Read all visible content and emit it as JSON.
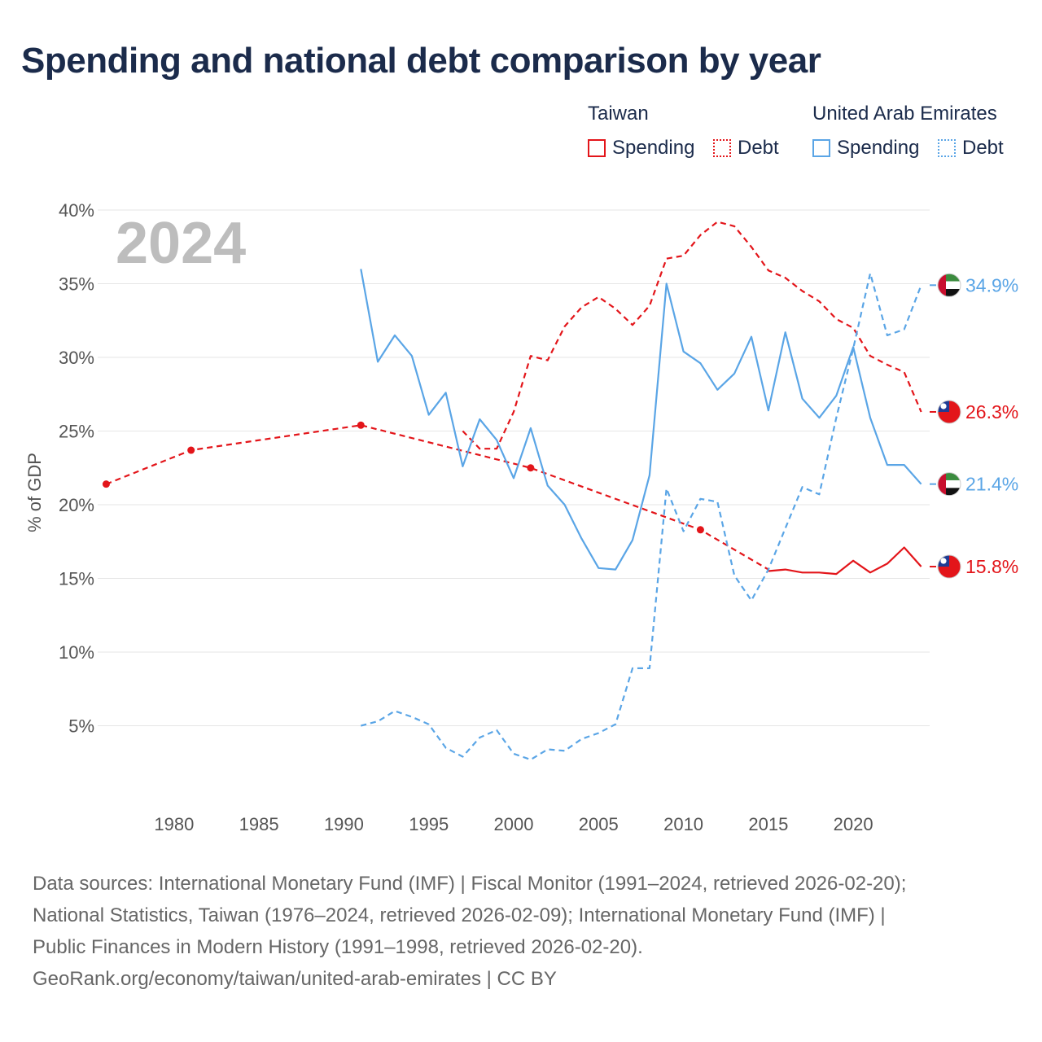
{
  "title": "Spending and national debt comparison by year",
  "legend": {
    "groups": [
      {
        "name": "Taiwan",
        "color": "#e3151a",
        "items": [
          {
            "label": "Spending",
            "style": "solid"
          },
          {
            "label": "Debt",
            "style": "dotted"
          }
        ]
      },
      {
        "name": "United Arab Emirates",
        "color": "#5aa5e6",
        "items": [
          {
            "label": "Spending",
            "style": "solid"
          },
          {
            "label": "Debt",
            "style": "dotted"
          }
        ]
      }
    ]
  },
  "chart_data": {
    "type": "line",
    "title": "Spending and national debt comparison by year",
    "ylabel": "% of GDP",
    "xlabel": "",
    "xlim": [
      1975.5,
      2024.5
    ],
    "ylim": [
      0,
      40
    ],
    "xticks": [
      1980,
      1985,
      1990,
      1995,
      2000,
      2005,
      2010,
      2015,
      2020
    ],
    "yticks": [
      5,
      10,
      15,
      20,
      25,
      30,
      35,
      40
    ],
    "ytick_labels": [
      "5%",
      "10%",
      "15%",
      "20%",
      "25%",
      "30%",
      "35%",
      "40%"
    ],
    "year_label": "2024",
    "grid": true,
    "series": [
      {
        "name": "Taiwan Debt (early)",
        "country": "Taiwan",
        "measure": "Debt",
        "color": "#e3151a",
        "dash": "dashed",
        "markers": true,
        "x": [
          1976,
          1981,
          1991,
          2001,
          2011,
          2015
        ],
        "y": [
          21.4,
          23.7,
          25.4,
          22.5,
          18.3,
          15.6
        ]
      },
      {
        "name": "Taiwan Debt",
        "country": "Taiwan",
        "measure": "Debt",
        "color": "#e3151a",
        "dash": "dashed",
        "markers": false,
        "x": [
          1997,
          1998,
          1999,
          2000,
          2001,
          2002,
          2003,
          2004,
          2005,
          2006,
          2007,
          2008,
          2009,
          2010,
          2011,
          2012,
          2013,
          2014,
          2015,
          2016,
          2017,
          2018,
          2019,
          2020,
          2021,
          2022,
          2023,
          2024
        ],
        "y": [
          25.0,
          23.8,
          23.8,
          26.3,
          30.1,
          29.8,
          32.1,
          33.4,
          34.1,
          33.3,
          32.2,
          33.5,
          36.7,
          36.9,
          38.3,
          39.2,
          38.9,
          37.5,
          35.9,
          35.4,
          34.5,
          33.8,
          32.6,
          32.0,
          30.1,
          29.5,
          29.0,
          26.3
        ]
      },
      {
        "name": "Taiwan Spending",
        "country": "Taiwan",
        "measure": "Spending",
        "color": "#e3151a",
        "dash": "solid",
        "markers": false,
        "x": [
          2015,
          2016,
          2017,
          2018,
          2019,
          2020,
          2021,
          2022,
          2023,
          2024
        ],
        "y": [
          15.5,
          15.6,
          15.4,
          15.4,
          15.3,
          16.2,
          15.4,
          16.0,
          17.1,
          15.8
        ]
      },
      {
        "name": "UAE Spending",
        "country": "United Arab Emirates",
        "measure": "Spending",
        "color": "#5aa5e6",
        "dash": "solid",
        "markers": false,
        "x": [
          1991,
          1992,
          1993,
          1994,
          1995,
          1996,
          1997,
          1998,
          1999,
          2000,
          2001,
          2002,
          2003,
          2004,
          2005,
          2006,
          2007,
          2008,
          2009,
          2010,
          2011,
          2012,
          2013,
          2014,
          2015,
          2016,
          2017,
          2018,
          2019,
          2020,
          2021,
          2022,
          2023,
          2024
        ],
        "y": [
          36.0,
          29.7,
          31.5,
          30.1,
          26.1,
          27.6,
          22.6,
          25.8,
          24.4,
          21.8,
          25.2,
          21.3,
          20.0,
          17.7,
          15.7,
          15.6,
          17.6,
          22.0,
          35.0,
          30.4,
          29.6,
          27.8,
          28.9,
          31.4,
          26.4,
          31.7,
          27.2,
          25.9,
          27.4,
          30.7,
          25.9,
          22.7,
          22.7,
          21.4
        ]
      },
      {
        "name": "UAE Debt",
        "country": "United Arab Emirates",
        "measure": "Debt",
        "color": "#5aa5e6",
        "dash": "dashed",
        "markers": false,
        "x": [
          1991,
          1992,
          1993,
          1994,
          1995,
          1996,
          1997,
          1998,
          1999,
          2000,
          2001,
          2002,
          2003,
          2004,
          2005,
          2006,
          2007,
          2008,
          2009,
          2010,
          2011,
          2012,
          2013,
          2014,
          2015,
          2016,
          2017,
          2018,
          2019,
          2020,
          2021,
          2022,
          2023,
          2024
        ],
        "y": [
          5.0,
          5.3,
          6.0,
          5.6,
          5.1,
          3.5,
          2.9,
          4.2,
          4.7,
          3.1,
          2.7,
          3.4,
          3.3,
          4.1,
          4.5,
          5.1,
          8.9,
          8.9,
          21.1,
          18.2,
          20.4,
          20.2,
          15.2,
          13.5,
          15.6,
          18.4,
          21.2,
          20.7,
          25.9,
          30.6,
          35.7,
          31.5,
          31.9,
          34.9
        ]
      }
    ],
    "end_labels": [
      {
        "country": "United Arab Emirates",
        "value": 34.9,
        "text": "34.9%",
        "color": "#5aa5e6",
        "flag": "uae-flag"
      },
      {
        "country": "Taiwan",
        "value": 26.3,
        "text": "26.3%",
        "color": "#e3151a",
        "flag": "taiwan-flag"
      },
      {
        "country": "United Arab Emirates",
        "value": 21.4,
        "text": "21.4%",
        "color": "#5aa5e6",
        "flag": "uae-flag"
      },
      {
        "country": "Taiwan",
        "value": 15.8,
        "text": "15.8%",
        "color": "#e3151a",
        "flag": "taiwan-flag"
      }
    ]
  },
  "footer": {
    "lines": [
      "Data sources: International Monetary Fund (IMF) | Fiscal Monitor (1991–2024, retrieved 2026-02-20);",
      "National Statistics, Taiwan (1976–2024, retrieved 2026-02-09); International Monetary Fund (IMF) |",
      "Public Finances in Modern History (1991–1998, retrieved 2026-02-20).",
      "GeoRank.org/economy/taiwan/united-arab-emirates | CC BY"
    ]
  }
}
